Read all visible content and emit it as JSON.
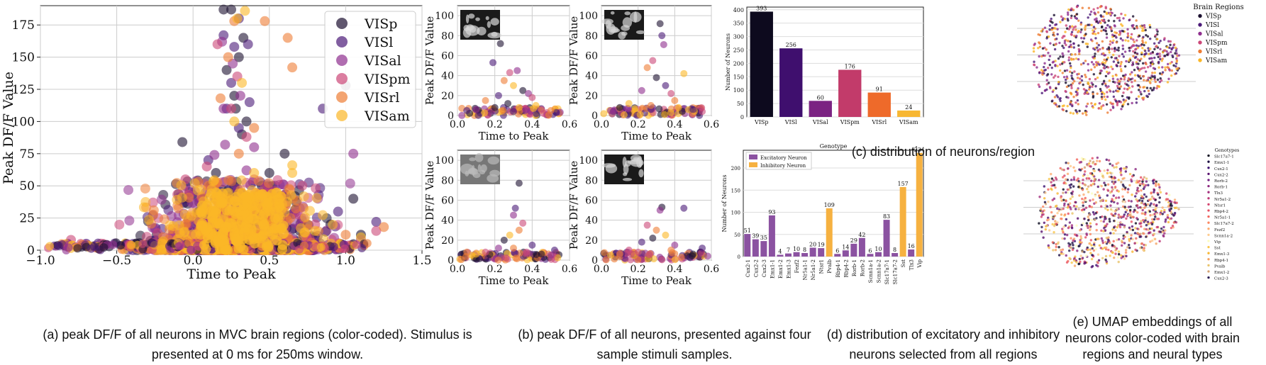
{
  "colors": {
    "regions": [
      "#1c1030",
      "#4b1a78",
      "#8f2f8e",
      "#cc4778",
      "#ee7d35",
      "#fbb727"
    ],
    "excitatory": "#8b52a1",
    "inhibitory": "#f6b140"
  },
  "chart_data": [
    {
      "id": "a",
      "type": "scatter",
      "xlabel": "Time to Peak",
      "ylabel": "Peak DF/F Value",
      "xlim": [
        -1.0,
        1.5
      ],
      "ylim": [
        0,
        190
      ],
      "xticks": [
        "−1.0",
        "−0.5",
        "0.0",
        "0.5",
        "1.0",
        "1.5"
      ],
      "xtick_values": [
        -1.0,
        -0.5,
        0.0,
        0.5,
        1.0,
        1.5
      ],
      "yticks": [
        "0",
        "25",
        "50",
        "75",
        "100",
        "125",
        "150",
        "175"
      ],
      "ytick_values": [
        0,
        25,
        50,
        75,
        100,
        125,
        150,
        175
      ],
      "grid": true,
      "legend": "top-right",
      "series": [
        {
          "name": "VISp",
          "points": [
            [
              0.2,
              187
            ],
            [
              0.25,
              187
            ],
            [
              0.33,
              165
            ],
            [
              0.3,
              150
            ],
            [
              0.22,
              140
            ],
            [
              1.0,
              128
            ],
            [
              -0.07,
              84
            ],
            [
              0.27,
              120
            ],
            [
              0.35,
              100
            ],
            [
              0.5,
              60
            ],
            [
              0.6,
              75
            ],
            [
              0.45,
              50
            ],
            [
              1.05,
              40
            ],
            [
              0.9,
              20
            ],
            [
              -0.3,
              4
            ],
            [
              -0.55,
              3
            ],
            [
              -0.2,
              5
            ],
            [
              0.1,
              30
            ],
            [
              0.15,
              60
            ],
            [
              0.4,
              35
            ],
            [
              0.7,
              15
            ],
            [
              0.8,
              10
            ],
            [
              1.1,
              12
            ],
            [
              0.32,
              90
            ],
            [
              0.28,
              110
            ]
          ]
        },
        {
          "name": "VISl",
          "points": [
            [
              0.3,
              180
            ],
            [
              0.2,
              167
            ],
            [
              0.27,
              158
            ],
            [
              0.36,
              160
            ],
            [
              0.85,
              110
            ],
            [
              0.37,
              115
            ],
            [
              0.22,
              110
            ],
            [
              0.1,
              70
            ],
            [
              -0.05,
              50
            ],
            [
              0.5,
              48
            ],
            [
              0.65,
              28
            ],
            [
              1.2,
              22
            ],
            [
              -0.7,
              5
            ],
            [
              -0.4,
              3
            ],
            [
              0.05,
              20
            ],
            [
              0.42,
              42
            ],
            [
              0.95,
              30
            ],
            [
              0.3,
              95
            ],
            [
              0.25,
              130
            ]
          ]
        },
        {
          "name": "VISal",
          "points": [
            [
              0.19,
              162
            ],
            [
              0.26,
              145
            ],
            [
              0.31,
              120
            ],
            [
              0.21,
              82
            ],
            [
              0.14,
              74
            ],
            [
              1.05,
              75
            ],
            [
              0.4,
              80
            ],
            [
              0.55,
              40
            ],
            [
              0.35,
              62
            ],
            [
              0.0,
              20
            ],
            [
              -0.85,
              4
            ],
            [
              -0.1,
              14
            ],
            [
              0.7,
              18
            ],
            [
              1.1,
              8
            ],
            [
              0.2,
              110
            ]
          ]
        },
        {
          "name": "VISpm",
          "points": [
            [
              0.16,
              160
            ],
            [
              0.29,
              135
            ],
            [
              0.25,
              110
            ],
            [
              0.35,
              88
            ],
            [
              0.09,
              65
            ],
            [
              -0.05,
              55
            ],
            [
              0.6,
              43
            ],
            [
              0.45,
              35
            ],
            [
              0.8,
              20
            ],
            [
              1.2,
              15
            ],
            [
              -0.8,
              8
            ],
            [
              -0.25,
              6
            ],
            [
              0.15,
              40
            ],
            [
              0.4,
              55
            ]
          ]
        },
        {
          "name": "VISrl",
          "points": [
            [
              0.47,
              178
            ],
            [
              0.27,
              178
            ],
            [
              0.62,
              165
            ],
            [
              0.23,
              150
            ],
            [
              0.18,
              118
            ],
            [
              0.4,
              95
            ],
            [
              0.3,
              75
            ],
            [
              0.1,
              50
            ],
            [
              0.55,
              35
            ],
            [
              0.75,
              20
            ],
            [
              1.0,
              12
            ],
            [
              -0.6,
              3
            ],
            [
              -0.1,
              8
            ],
            [
              0.65,
              142
            ],
            [
              1.25,
              18
            ]
          ]
        },
        {
          "name": "VISam",
          "points": [
            [
              0.34,
              186
            ],
            [
              0.29,
              180
            ],
            [
              0.32,
              130
            ],
            [
              0.27,
              100
            ],
            [
              0.4,
              60
            ],
            [
              0.15,
              45
            ],
            [
              0.65,
              66
            ],
            [
              0.65,
              60
            ],
            [
              0.5,
              30
            ],
            [
              0.2,
              25
            ],
            [
              0.8,
              15
            ],
            [
              1.1,
              10
            ],
            [
              0.05,
              12
            ],
            [
              -0.2,
              5
            ],
            [
              0.33,
              40
            ],
            [
              0.28,
              30
            ],
            [
              0.36,
              25
            ]
          ]
        }
      ]
    },
    {
      "id": "b1",
      "type": "scatter",
      "xlabel": "Time to Peak",
      "ylabel": "Peak DF/F Value",
      "xlim": [
        0.0,
        0.6
      ],
      "ylim": [
        0,
        110
      ],
      "xticks": [
        "0.0",
        "0.2",
        "0.4",
        "0.6"
      ],
      "yticks": [
        "0",
        "20",
        "40",
        "60",
        "80",
        "100"
      ],
      "grid": true,
      "points": [
        [
          0.23,
          72
        ],
        [
          0.19,
          53
        ],
        [
          0.32,
          45
        ],
        [
          0.28,
          43
        ],
        [
          0.25,
          35
        ],
        [
          0.3,
          30
        ],
        [
          0.35,
          25
        ],
        [
          0.22,
          20
        ],
        [
          0.38,
          22
        ],
        [
          0.4,
          18
        ],
        [
          0.15,
          15
        ],
        [
          0.42,
          10
        ],
        [
          0.27,
          12
        ],
        [
          0.05,
          5
        ],
        [
          0.1,
          6
        ],
        [
          0.45,
          6
        ],
        [
          0.5,
          5
        ],
        [
          0.33,
          8
        ],
        [
          0.2,
          8
        ],
        [
          0.3,
          4
        ]
      ]
    },
    {
      "id": "b2",
      "type": "scatter",
      "xlabel": "Time to Peak",
      "ylabel": "Peak DF/F Value",
      "xlim": [
        0.0,
        0.6
      ],
      "ylim": [
        0,
        110
      ],
      "xticks": [
        "0.0",
        "0.2",
        "0.4",
        "0.6"
      ],
      "yticks": [
        "0",
        "20",
        "40",
        "60",
        "80",
        "100"
      ],
      "grid": true,
      "points": [
        [
          0.32,
          92
        ],
        [
          0.33,
          80
        ],
        [
          0.34,
          71
        ],
        [
          0.28,
          55
        ],
        [
          0.25,
          48
        ],
        [
          0.45,
          42
        ],
        [
          0.3,
          38
        ],
        [
          0.35,
          30
        ],
        [
          0.22,
          25
        ],
        [
          0.38,
          22
        ],
        [
          0.4,
          15
        ],
        [
          0.15,
          12
        ],
        [
          0.1,
          8
        ],
        [
          0.5,
          6
        ],
        [
          0.05,
          5
        ],
        [
          0.55,
          4
        ],
        [
          0.27,
          10
        ],
        [
          0.42,
          8
        ]
      ]
    },
    {
      "id": "b3",
      "type": "scatter",
      "xlabel": "Time to Peak",
      "ylabel": "Peak DF/F Value",
      "xlim": [
        0.0,
        0.6
      ],
      "ylim": [
        0,
        110
      ],
      "xticks": [
        "0.0",
        "0.2",
        "0.4",
        "0.6"
      ],
      "yticks": [
        "0",
        "20",
        "40",
        "60",
        "80",
        "100"
      ],
      "grid": true,
      "points": [
        [
          0.33,
          77
        ],
        [
          0.31,
          52
        ],
        [
          0.3,
          45
        ],
        [
          0.35,
          37
        ],
        [
          0.33,
          30
        ],
        [
          0.28,
          25
        ],
        [
          0.25,
          20
        ],
        [
          0.4,
          15
        ],
        [
          0.22,
          12
        ],
        [
          0.15,
          8
        ],
        [
          0.05,
          8
        ],
        [
          0.1,
          6
        ],
        [
          0.45,
          6
        ],
        [
          0.52,
          10
        ],
        [
          0.5,
          5
        ],
        [
          0.37,
          8
        ],
        [
          0.3,
          12
        ]
      ]
    },
    {
      "id": "b4",
      "type": "scatter",
      "xlabel": "Time to Peak",
      "ylabel": "Peak DF/F Value",
      "xlim": [
        0.0,
        0.6
      ],
      "ylim": [
        0,
        110
      ],
      "xticks": [
        "0.0",
        "0.2",
        "0.4",
        "0.6"
      ],
      "yticks": [
        "0",
        "20",
        "40",
        "60",
        "80",
        "100"
      ],
      "grid": true,
      "points": [
        [
          0.33,
          53
        ],
        [
          0.45,
          52
        ],
        [
          0.32,
          50
        ],
        [
          0.25,
          35
        ],
        [
          0.3,
          30
        ],
        [
          0.35,
          25
        ],
        [
          0.28,
          22
        ],
        [
          0.22,
          18
        ],
        [
          0.4,
          15
        ],
        [
          0.15,
          10
        ],
        [
          0.1,
          6
        ],
        [
          0.05,
          5
        ],
        [
          0.5,
          6
        ],
        [
          0.55,
          12
        ],
        [
          0.58,
          4
        ],
        [
          0.2,
          8
        ],
        [
          0.38,
          10
        ]
      ]
    },
    {
      "id": "c",
      "type": "bar",
      "xlabel": "",
      "ylabel": "Number of Neurons",
      "categories": [
        "VISp",
        "VISl",
        "VISal",
        "VISpm",
        "VISrl",
        "VISam"
      ],
      "values": [
        393,
        256,
        60,
        176,
        91,
        24
      ],
      "ylim": [
        0,
        410
      ],
      "yticks": [
        "0",
        "50",
        "100",
        "150",
        "200",
        "250",
        "300",
        "350",
        "400"
      ]
    },
    {
      "id": "d",
      "type": "bar",
      "xlabel": "Genotype",
      "ylabel": "Number of Neurons",
      "categories": [
        "Cux2-1",
        "Cux2-2",
        "Cux2-3",
        "Emx1-1",
        "Emx1-2",
        "Emx1-3",
        "Fezf2",
        "Nr5a1-1",
        "Nr5a1-2",
        "Ntsr1",
        "Pvalb",
        "Rbp4-1",
        "Rbp4-2",
        "Rorb-1",
        "Rorb-2",
        "Scnn1a-1",
        "Scnn1a-2",
        "Slc17a7-1",
        "Slc17a7-2",
        "Sst",
        "Tlx3",
        "Vip"
      ],
      "values": [
        51,
        39,
        35,
        93,
        4,
        7,
        10,
        8,
        20,
        19,
        109,
        6,
        14,
        29,
        42,
        6,
        10,
        83,
        8,
        157,
        16,
        234
      ],
      "classes": [
        "E",
        "E",
        "E",
        "E",
        "E",
        "E",
        "E",
        "E",
        "E",
        "E",
        "I",
        "E",
        "E",
        "E",
        "E",
        "E",
        "E",
        "E",
        "E",
        "I",
        "E",
        "I"
      ],
      "legend": [
        "Excitatory Neuron",
        "Inhibitory Neuron"
      ],
      "ylim": [
        0,
        240
      ],
      "yticks": [
        "0",
        "50",
        "100",
        "150",
        "200"
      ]
    }
  ],
  "umap_top": {
    "legend_title": "Brain Regions",
    "items": [
      "VISp",
      "VISl",
      "VISal",
      "VISpm",
      "VISrl",
      "VISam"
    ]
  },
  "umap_bottom": {
    "legend_title": "Genotypes",
    "items": [
      "Slc17a7-1",
      "Emx1-1",
      "Cux2-1",
      "Cux2-2",
      "Rorb-2",
      "Rorb-1",
      "Tlx3",
      "Nr5a1-2",
      "Ntsr1",
      "Rbp4-2",
      "Nr5a1-1",
      "Slc17a7-2",
      "Fezf2",
      "Scnn1a-2",
      "Vip",
      "Sst",
      "Emx1-3",
      "Rbp4-1",
      "Pvalb",
      "Emx1-2",
      "Cux2-3"
    ]
  },
  "captions": {
    "a_line1": "(a) peak DF/F of all neurons in MVC brain regions (color-coded). Stimulus is",
    "a_line2": "presented at 0 ms for 250ms window.",
    "b_line1": "(b) peak DF/F of all neurons, presented against four",
    "b_line2": "sample stimuli samples.",
    "c": "(c) distribution of neurons/region",
    "d_line1": "(d) distribution of excitatory and inhibitory",
    "d_line2": "neurons selected from all regions",
    "e_line1": "(e) UMAP embeddings of all",
    "e_line2": "neurons color-coded with brain",
    "e_line3": "regions and neural types"
  }
}
